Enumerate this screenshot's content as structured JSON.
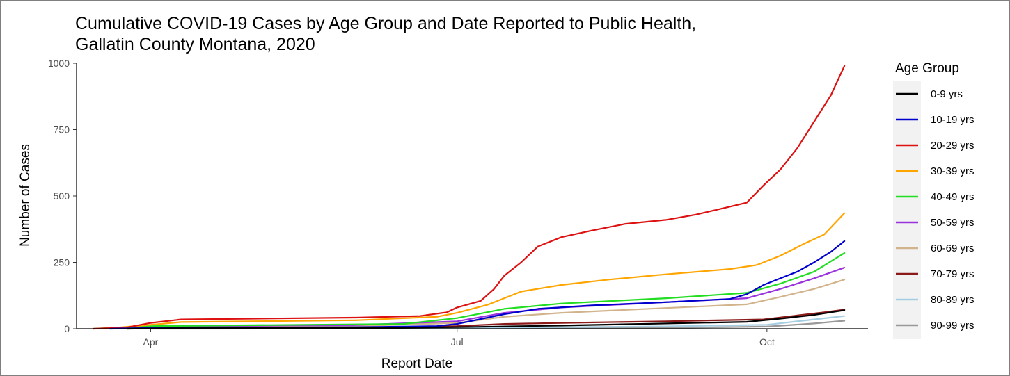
{
  "chart_data": {
    "type": "line",
    "title": "Cumulative COVID-19 Cases by Age Group and Date Reported to Public Health,",
    "subtitle": "Gallatin County Montana, 2020",
    "xlabel": "Report Date",
    "ylabel": "Number of Cases",
    "xlim": [
      "2020-03-10",
      "2020-10-31"
    ],
    "ylim": [
      0,
      1000
    ],
    "x_ticks": [
      {
        "date": "2020-04-01",
        "label": "Apr"
      },
      {
        "date": "2020-07-01",
        "label": "Jul"
      },
      {
        "date": "2020-10-01",
        "label": "Oct"
      }
    ],
    "y_ticks": [
      0,
      250,
      500,
      750,
      1000
    ],
    "grid": false,
    "legend": {
      "title": "Age Group",
      "placement": "right"
    },
    "series": [
      {
        "name": "0-9 yrs",
        "color": "#000000",
        "points": [
          [
            "2020-03-25",
            0
          ],
          [
            "2020-04-10",
            2
          ],
          [
            "2020-06-01",
            3
          ],
          [
            "2020-07-01",
            6
          ],
          [
            "2020-08-01",
            12
          ],
          [
            "2020-09-01",
            20
          ],
          [
            "2020-09-25",
            26
          ],
          [
            "2020-10-05",
            38
          ],
          [
            "2020-10-15",
            52
          ],
          [
            "2020-10-22",
            66
          ],
          [
            "2020-10-24",
            70
          ]
        ]
      },
      {
        "name": "10-19 yrs",
        "color": "#0000cc",
        "points": [
          [
            "2020-03-20",
            0
          ],
          [
            "2020-04-01",
            3
          ],
          [
            "2020-06-01",
            6
          ],
          [
            "2020-06-25",
            10
          ],
          [
            "2020-07-01",
            18
          ],
          [
            "2020-07-15",
            55
          ],
          [
            "2020-07-25",
            75
          ],
          [
            "2020-08-10",
            88
          ],
          [
            "2020-09-01",
            100
          ],
          [
            "2020-09-20",
            112
          ],
          [
            "2020-09-25",
            130
          ],
          [
            "2020-09-30",
            165
          ],
          [
            "2020-10-05",
            190
          ],
          [
            "2020-10-10",
            215
          ],
          [
            "2020-10-15",
            250
          ],
          [
            "2020-10-20",
            290
          ],
          [
            "2020-10-24",
            330
          ]
        ]
      },
      {
        "name": "20-29 yrs",
        "color": "#dd1111",
        "points": [
          [
            "2020-03-15",
            0
          ],
          [
            "2020-03-25",
            5
          ],
          [
            "2020-04-01",
            22
          ],
          [
            "2020-04-10",
            35
          ],
          [
            "2020-05-01",
            38
          ],
          [
            "2020-06-01",
            42
          ],
          [
            "2020-06-20",
            48
          ],
          [
            "2020-06-28",
            62
          ],
          [
            "2020-07-01",
            80
          ],
          [
            "2020-07-08",
            105
          ],
          [
            "2020-07-12",
            150
          ],
          [
            "2020-07-15",
            200
          ],
          [
            "2020-07-20",
            250
          ],
          [
            "2020-07-25",
            310
          ],
          [
            "2020-08-01",
            345
          ],
          [
            "2020-08-10",
            370
          ],
          [
            "2020-08-20",
            395
          ],
          [
            "2020-09-01",
            410
          ],
          [
            "2020-09-10",
            430
          ],
          [
            "2020-09-20",
            460
          ],
          [
            "2020-09-25",
            475
          ],
          [
            "2020-09-30",
            540
          ],
          [
            "2020-10-05",
            600
          ],
          [
            "2020-10-10",
            680
          ],
          [
            "2020-10-15",
            780
          ],
          [
            "2020-10-20",
            880
          ],
          [
            "2020-10-24",
            990
          ]
        ]
      },
      {
        "name": "30-39 yrs",
        "color": "#ffa500",
        "points": [
          [
            "2020-03-18",
            0
          ],
          [
            "2020-04-01",
            15
          ],
          [
            "2020-04-10",
            25
          ],
          [
            "2020-06-01",
            32
          ],
          [
            "2020-06-25",
            45
          ],
          [
            "2020-07-01",
            60
          ],
          [
            "2020-07-10",
            90
          ],
          [
            "2020-07-20",
            140
          ],
          [
            "2020-08-01",
            165
          ],
          [
            "2020-08-15",
            185
          ],
          [
            "2020-09-01",
            205
          ],
          [
            "2020-09-20",
            225
          ],
          [
            "2020-09-28",
            240
          ],
          [
            "2020-10-05",
            275
          ],
          [
            "2020-10-12",
            320
          ],
          [
            "2020-10-18",
            355
          ],
          [
            "2020-10-24",
            435
          ]
        ]
      },
      {
        "name": "40-49 yrs",
        "color": "#22dd22",
        "points": [
          [
            "2020-03-15",
            0
          ],
          [
            "2020-04-01",
            10
          ],
          [
            "2020-06-15",
            18
          ],
          [
            "2020-07-01",
            40
          ],
          [
            "2020-07-15",
            75
          ],
          [
            "2020-08-01",
            95
          ],
          [
            "2020-09-01",
            115
          ],
          [
            "2020-09-25",
            135
          ],
          [
            "2020-10-05",
            170
          ],
          [
            "2020-10-15",
            215
          ],
          [
            "2020-10-24",
            285
          ]
        ]
      },
      {
        "name": "50-59 yrs",
        "color": "#9933dd",
        "points": [
          [
            "2020-03-20",
            0
          ],
          [
            "2020-04-01",
            8
          ],
          [
            "2020-06-01",
            14
          ],
          [
            "2020-07-01",
            28
          ],
          [
            "2020-07-15",
            60
          ],
          [
            "2020-08-01",
            80
          ],
          [
            "2020-09-01",
            100
          ],
          [
            "2020-09-25",
            115
          ],
          [
            "2020-10-05",
            150
          ],
          [
            "2020-10-15",
            190
          ],
          [
            "2020-10-24",
            230
          ]
        ]
      },
      {
        "name": "60-69 yrs",
        "color": "#d2b48c",
        "points": [
          [
            "2020-03-22",
            0
          ],
          [
            "2020-04-01",
            6
          ],
          [
            "2020-06-01",
            10
          ],
          [
            "2020-07-01",
            22
          ],
          [
            "2020-07-15",
            45
          ],
          [
            "2020-08-01",
            60
          ],
          [
            "2020-09-01",
            78
          ],
          [
            "2020-09-25",
            92
          ],
          [
            "2020-10-05",
            120
          ],
          [
            "2020-10-15",
            150
          ],
          [
            "2020-10-24",
            185
          ]
        ]
      },
      {
        "name": "70-79 yrs",
        "color": "#8b1a1a",
        "points": [
          [
            "2020-03-25",
            0
          ],
          [
            "2020-04-05",
            3
          ],
          [
            "2020-06-01",
            5
          ],
          [
            "2020-07-01",
            10
          ],
          [
            "2020-07-15",
            18
          ],
          [
            "2020-08-01",
            22
          ],
          [
            "2020-09-01",
            28
          ],
          [
            "2020-09-30",
            35
          ],
          [
            "2020-10-10",
            50
          ],
          [
            "2020-10-18",
            62
          ],
          [
            "2020-10-24",
            72
          ]
        ]
      },
      {
        "name": "80-89 yrs",
        "color": "#a6cee3",
        "points": [
          [
            "2020-03-28",
            0
          ],
          [
            "2020-04-10",
            2
          ],
          [
            "2020-07-01",
            4
          ],
          [
            "2020-08-01",
            6
          ],
          [
            "2020-09-01",
            9
          ],
          [
            "2020-10-01",
            15
          ],
          [
            "2020-10-15",
            35
          ],
          [
            "2020-10-24",
            48
          ]
        ]
      },
      {
        "name": "90-99 yrs",
        "color": "#999999",
        "points": [
          [
            "2020-04-01",
            0
          ],
          [
            "2020-07-01",
            1
          ],
          [
            "2020-09-01",
            3
          ],
          [
            "2020-10-01",
            8
          ],
          [
            "2020-10-15",
            20
          ],
          [
            "2020-10-24",
            30
          ]
        ]
      }
    ]
  }
}
